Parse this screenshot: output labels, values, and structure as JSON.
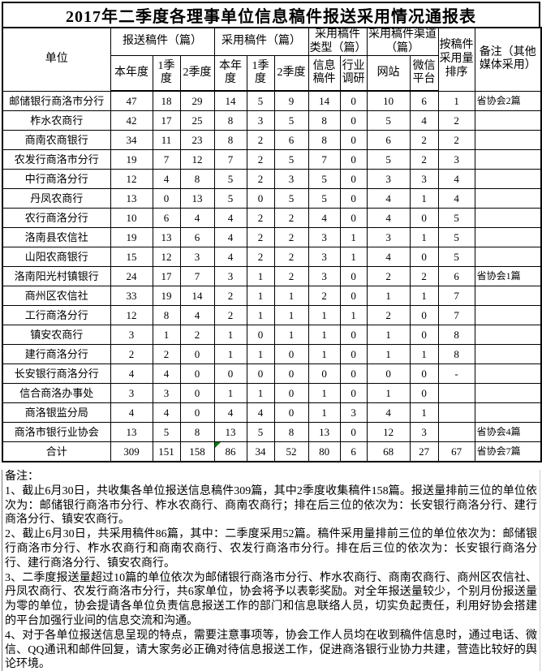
{
  "title": "2017年二季度各理事单位信息稿件报送采用情况通报表",
  "colors": {
    "grid": "#000000",
    "flag": "#008000"
  },
  "table": {
    "header": {
      "unit": "单位",
      "groups": [
        {
          "label": "报送稿件（篇）",
          "children": [
            "本年度",
            "1季度",
            "2季度"
          ]
        },
        {
          "label": "采用稿件（篇）",
          "children": [
            "本年度",
            "1季度",
            "2季度"
          ]
        },
        {
          "label": "采用稿件类型（篇）",
          "children": [
            "信息稿件",
            "行业调研"
          ]
        },
        {
          "label": "采用稿件渠道（篇）",
          "children": [
            "网站",
            "微信平台"
          ]
        }
      ],
      "rank": "按稿件采用量排序",
      "remark": "备注（其他媒体采用）"
    },
    "rows": [
      {
        "unit": "邮储银行商洛市分行",
        "values": [
          "47",
          "18",
          "29",
          "14",
          "5",
          "9",
          "14",
          "0",
          "10",
          "6",
          "1"
        ],
        "remark": "省协会2篇"
      },
      {
        "unit": "柞水农商行",
        "values": [
          "42",
          "17",
          "25",
          "8",
          "3",
          "5",
          "8",
          "0",
          "5",
          "4",
          "2"
        ],
        "remark": ""
      },
      {
        "unit": "商南农商银行",
        "values": [
          "34",
          "11",
          "23",
          "8",
          "2",
          "6",
          "8",
          "0",
          "6",
          "2",
          "2"
        ],
        "remark": ""
      },
      {
        "unit": "农发行商洛市分行",
        "values": [
          "19",
          "7",
          "12",
          "7",
          "2",
          "5",
          "7",
          "0",
          "5",
          "2",
          "3"
        ],
        "remark": ""
      },
      {
        "unit": "中行商洛分行",
        "values": [
          "12",
          "4",
          "8",
          "5",
          "2",
          "3",
          "5",
          "0",
          "3",
          "3",
          "4"
        ],
        "remark": ""
      },
      {
        "unit": "丹凤农商行",
        "values": [
          "13",
          "0",
          "13",
          "5",
          "0",
          "5",
          "5",
          "0",
          "4",
          "1",
          "4"
        ],
        "remark": ""
      },
      {
        "unit": "农行商洛分行",
        "values": [
          "10",
          "6",
          "4",
          "4",
          "2",
          "2",
          "4",
          "0",
          "4",
          "0",
          "5"
        ],
        "remark": ""
      },
      {
        "unit": "洛南县农信社",
        "values": [
          "19",
          "13",
          "6",
          "4",
          "2",
          "2",
          "3",
          "1",
          "3",
          "1",
          "5"
        ],
        "remark": ""
      },
      {
        "unit": "山阳农商银行",
        "values": [
          "15",
          "12",
          "3",
          "4",
          "2",
          "2",
          "3",
          "1",
          "4",
          "0",
          "5"
        ],
        "remark": ""
      },
      {
        "unit": "洛南阳光村镇银行",
        "values": [
          "24",
          "17",
          "7",
          "3",
          "1",
          "2",
          "3",
          "0",
          "2",
          "2",
          "6"
        ],
        "remark": "省协会1篇"
      },
      {
        "unit": "商州区农信社",
        "values": [
          "33",
          "19",
          "14",
          "2",
          "1",
          "1",
          "2",
          "0",
          "1",
          "1",
          "7"
        ],
        "remark": ""
      },
      {
        "unit": "工行商洛分行",
        "values": [
          "12",
          "8",
          "4",
          "2",
          "1",
          "1",
          "1",
          "1",
          "2",
          "0",
          "7"
        ],
        "remark": ""
      },
      {
        "unit": "镇安农商行",
        "values": [
          "3",
          "1",
          "2",
          "1",
          "0",
          "1",
          "1",
          "0",
          "1",
          "0",
          "8"
        ],
        "remark": ""
      },
      {
        "unit": "建行商洛分行",
        "values": [
          "2",
          "2",
          "0",
          "1",
          "1",
          "0",
          "1",
          "0",
          "1",
          "1",
          "8"
        ],
        "remark": ""
      },
      {
        "unit": "长安银行商洛分行",
        "values": [
          "4",
          "4",
          "0",
          "0",
          "0",
          "0",
          "0",
          "0",
          "0",
          "0",
          "-"
        ],
        "remark": ""
      },
      {
        "unit": "信合商洛办事处",
        "values": [
          "3",
          "3",
          "0",
          "1",
          "1",
          "0",
          "1",
          "0",
          "1",
          "0",
          ""
        ],
        "remark": ""
      },
      {
        "unit": "商洛银监分局",
        "values": [
          "4",
          "4",
          "0",
          "4",
          "4",
          "0",
          "1",
          "3",
          "4",
          "1",
          ""
        ],
        "remark": ""
      },
      {
        "unit": "商洛市银行业协会",
        "values": [
          "13",
          "5",
          "8",
          "13",
          "5",
          "8",
          "13",
          "0",
          "12",
          "3",
          ""
        ],
        "remark": "省协会4篇"
      },
      {
        "unit": "合计",
        "total": true,
        "flag_index": 3,
        "values": [
          "309",
          "151",
          "158",
          "86",
          "34",
          "52",
          "80",
          "6",
          "68",
          "27",
          "67"
        ],
        "remark": "省协会7篇"
      }
    ]
  },
  "notes": {
    "label": "备注：",
    "items": [
      "1、截止6月30日，共收集各单位报送信息稿件309篇，其中2季度收集稿件158篇。报送量排前三位的单位依次为：邮储银行商洛市分行、柞水农商行、商南农商行；排在后三位的依次为：长安银行商洛分行、建行商洛分行、镇安农商行。",
      "2、截止6月30日，共采用稿件86篇，其中：二季度采用52篇。稿件采用量排前三位的单位依次为：邮储银行商洛市分行、柞水农商行和商南农商行、农发行商洛市分行。排在后三位的依次为：长安银行商洛分行、建行商洛分行、镇安农商行。",
      "3、二季度报送量超过10篇的单位依次为邮储银行商洛市分行、柞水农商行、商南农商行、商州区农信社、丹凤农商行、农发行商洛市分行，共6家单位，协会将予以表彰奖励。对全年报送量较少，个别月份报送量为零的单位，协会提请各单位负责信息报送工作的部门和信息联络人员，切实负起责任，利用好协会搭建的平台加强行业间的信息交流和沟通。",
      "4、对于各单位报送信息呈现的特点，需要注意事项等，协会工作人员均在收到稿件信息时，通过电话、微信、QQ通讯和邮件回复，请大家务必正确对待信息报送工作，促进商洛银行业协力共建，营造比较好的舆论环境。"
    ]
  }
}
